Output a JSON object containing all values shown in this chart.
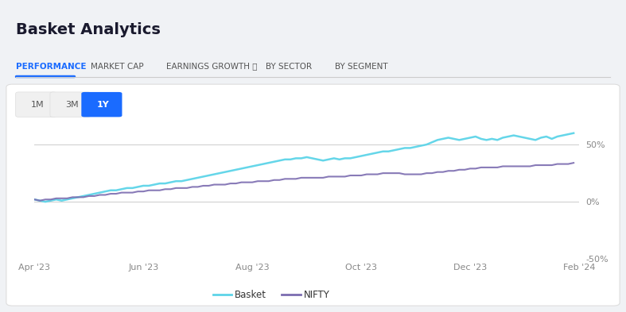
{
  "title": "Basket Analytics",
  "tabs": [
    "PERFORMANCE",
    "MARKET CAP",
    "EARNINGS GROWTH ⓘ",
    "BY SECTOR",
    "BY SEGMENT"
  ],
  "active_tab": "PERFORMANCE",
  "time_buttons": [
    "1M",
    "3M",
    "1Y"
  ],
  "active_time": "1Y",
  "x_labels": [
    "Apr '23",
    "Jun '23",
    "Aug '23",
    "Oct '23",
    "Dec '23",
    "Feb '24"
  ],
  "y_ticks": [
    "-50%",
    "0%",
    "50%"
  ],
  "y_values": [
    -50,
    0,
    50
  ],
  "basket_color": "#5dd4e8",
  "nifty_color": "#7b6cb0",
  "background_color": "#f0f2f5",
  "card_color": "#ffffff",
  "title_color": "#1a1a2e",
  "tab_active_color": "#1a6bff",
  "tab_inactive_color": "#555555",
  "legend_basket": "Basket",
  "legend_nifty": "NIFTY",
  "basket_data_x": [
    0,
    1,
    2,
    3,
    4,
    5,
    6,
    7,
    8,
    9,
    10,
    11,
    12,
    13,
    14,
    15,
    16,
    17,
    18,
    19,
    20,
    21,
    22,
    23,
    24,
    25,
    26,
    27,
    28,
    29,
    30,
    31,
    32,
    33,
    34,
    35,
    36,
    37,
    38,
    39,
    40,
    41,
    42,
    43,
    44,
    45,
    46,
    47,
    48,
    49,
    50,
    51,
    52,
    53,
    54,
    55,
    56,
    57,
    58,
    59,
    60,
    61,
    62,
    63,
    64,
    65,
    66,
    67,
    68,
    69,
    70,
    71,
    72,
    73,
    74,
    75,
    76,
    77,
    78,
    79,
    80,
    81,
    82,
    83,
    84,
    85,
    86,
    87,
    88,
    89,
    90,
    91,
    92,
    93,
    94,
    95,
    96,
    97,
    98,
    99
  ],
  "basket_data_y": [
    2,
    1,
    0,
    1,
    2,
    1,
    2,
    3,
    4,
    5,
    6,
    7,
    8,
    9,
    10,
    10,
    11,
    12,
    12,
    13,
    14,
    14,
    15,
    16,
    16,
    17,
    18,
    18,
    19,
    20,
    21,
    22,
    23,
    24,
    25,
    26,
    27,
    28,
    29,
    30,
    31,
    32,
    33,
    34,
    35,
    36,
    37,
    37,
    38,
    38,
    39,
    38,
    37,
    36,
    37,
    38,
    37,
    38,
    38,
    39,
    40,
    41,
    42,
    43,
    44,
    44,
    45,
    46,
    47,
    47,
    48,
    49,
    50,
    52,
    54,
    55,
    56,
    55,
    54,
    55,
    56,
    57,
    55,
    54,
    55,
    54,
    56,
    57,
    58,
    57,
    56,
    55,
    54,
    56,
    57,
    55,
    57,
    58,
    59,
    60
  ],
  "nifty_data_y": [
    2,
    1,
    2,
    2,
    3,
    3,
    3,
    4,
    4,
    4,
    5,
    5,
    6,
    6,
    7,
    7,
    8,
    8,
    8,
    9,
    9,
    10,
    10,
    10,
    11,
    11,
    12,
    12,
    12,
    13,
    13,
    14,
    14,
    15,
    15,
    15,
    16,
    16,
    17,
    17,
    17,
    18,
    18,
    18,
    19,
    19,
    20,
    20,
    20,
    21,
    21,
    21,
    21,
    21,
    22,
    22,
    22,
    22,
    23,
    23,
    23,
    24,
    24,
    24,
    25,
    25,
    25,
    25,
    24,
    24,
    24,
    24,
    25,
    25,
    26,
    26,
    27,
    27,
    28,
    28,
    29,
    29,
    30,
    30,
    30,
    30,
    31,
    31,
    31,
    31,
    31,
    31,
    32,
    32,
    32,
    32,
    33,
    33,
    33,
    34
  ]
}
